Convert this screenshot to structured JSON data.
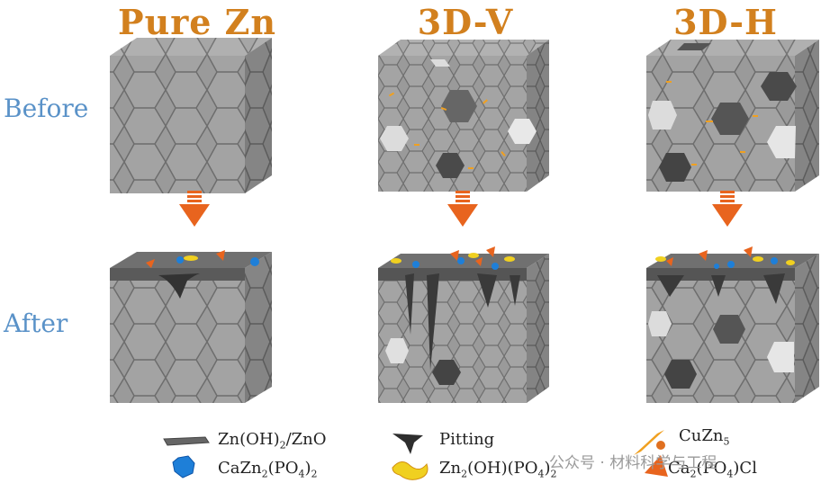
{
  "columns": [
    "Pure Zn",
    "3D-V",
    "3D-H"
  ],
  "rows": [
    "Before",
    "After"
  ],
  "legend": {
    "zn_oh_zno": {
      "a": "Zn(OH)",
      "s1": "2",
      "b": "/ZnO"
    },
    "cazn_po4": {
      "a": "CaZn",
      "s1": "2",
      "b": "(PO",
      "s2": "4",
      "c": ")",
      "s3": "2"
    },
    "pitting": "Pitting",
    "zn2_oh_po4": {
      "a": "Zn",
      "s1": "2",
      "b": "(OH)(PO",
      "s2": "4",
      "c": ")",
      "s3": "2"
    },
    "cuzn5": {
      "a": "CuZn",
      "s1": "5"
    },
    "ca2_po4_cl": {
      "a": "Ca",
      "s1": "2",
      "b": "(PO",
      "s2": "4",
      "c": ")Cl"
    }
  },
  "watermark": "公众号 · 材料科学与工程",
  "colors": {
    "title": "#d2801e",
    "row_label": "#5a92c8",
    "arrow": "#e8641e",
    "block": "#8c8c8c"
  }
}
